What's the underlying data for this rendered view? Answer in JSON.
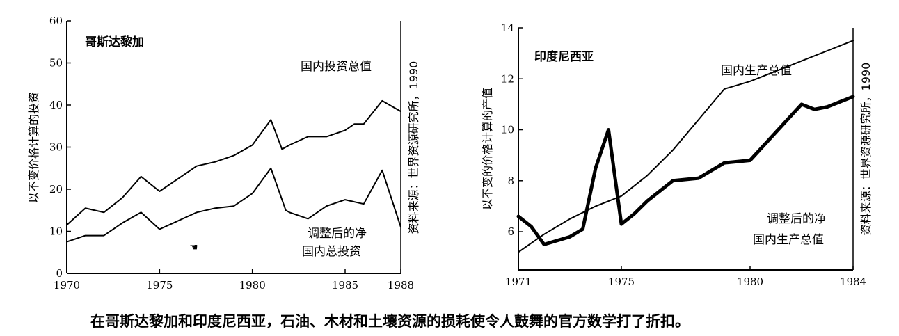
{
  "caption": "在哥斯达黎加和印度尼西亚，石油、木材和土壤资源的损耗使令人鼓舞的官方数学打了折扣。",
  "chart_data": [
    {
      "type": "line",
      "title": "哥斯达黎加",
      "ylabel": "以不变价格计算的投资",
      "source": "资料来源：世界资源研究所，1990",
      "xlim": [
        1970,
        1988
      ],
      "ylim": [
        0,
        60
      ],
      "x_ticks": [
        "1970",
        "1975",
        "1980",
        "1985",
        "1988"
      ],
      "y_ticks": [
        "0",
        "10",
        "20",
        "30",
        "40",
        "50",
        "60"
      ],
      "grid": false,
      "series": [
        {
          "name": "国内投资总值",
          "x": [
            1970,
            1971,
            1972,
            1973,
            1974,
            1975,
            1976,
            1977,
            1978,
            1979,
            1980,
            1981,
            1981.6,
            1982,
            1983,
            1984,
            1985,
            1985.5,
            1986,
            1987,
            1988
          ],
          "y": [
            11.5,
            15.5,
            14.5,
            18,
            23,
            19.5,
            22.5,
            25.5,
            26.5,
            28,
            30.5,
            36.5,
            29.5,
            30.5,
            32.5,
            32.5,
            34,
            35.5,
            35.5,
            41,
            38.5
          ],
          "color": "#000000"
        },
        {
          "name": "调整后的净国内总投资",
          "x": [
            1970,
            1971,
            1972,
            1973,
            1974,
            1975,
            1976,
            1977,
            1978,
            1979,
            1980,
            1981,
            1981.8,
            1982,
            1983,
            1984,
            1985,
            1986,
            1987,
            1988
          ],
          "y": [
            7.5,
            9,
            9,
            12,
            14.5,
            10.5,
            12.5,
            14.5,
            15.5,
            16,
            19,
            25,
            15,
            14.5,
            13,
            16,
            17.5,
            16.5,
            24.5,
            11
          ],
          "color": "#000000"
        }
      ],
      "labels": [
        {
          "text": "国内投资总值"
        },
        {
          "text": "调整后的净"
        },
        {
          "text": "国内总投资"
        }
      ]
    },
    {
      "type": "line",
      "title": "印度尼西亚",
      "ylabel": "以不变的价格计算的产值",
      "source": "资料来源：世界资源研究所，1990",
      "xlim": [
        1971,
        1984
      ],
      "ylim": [
        4.5,
        14
      ],
      "x_ticks": [
        "1971",
        "1975",
        "1980",
        "1984"
      ],
      "y_ticks": [
        "6",
        "8",
        "10",
        "12",
        "14"
      ],
      "grid": false,
      "series": [
        {
          "name": "国内生产总值",
          "x": [
            1971,
            1972,
            1973,
            1974,
            1975,
            1976,
            1977,
            1978,
            1979,
            1980,
            1981,
            1982,
            1983,
            1984
          ],
          "y": [
            5.2,
            5.9,
            6.5,
            7.0,
            7.4,
            8.2,
            9.2,
            10.4,
            11.6,
            11.9,
            12.3,
            12.7,
            13.1,
            13.5
          ],
          "color": "#000000"
        },
        {
          "name": "调整后的净国内生产总值",
          "x": [
            1971,
            1971.5,
            1972,
            1973,
            1973.5,
            1974,
            1974.5,
            1975,
            1975.5,
            1976,
            1977,
            1978,
            1979,
            1980,
            1981,
            1982,
            1982.5,
            1983,
            1984
          ],
          "y": [
            6.6,
            6.2,
            5.5,
            5.8,
            6.1,
            8.5,
            10.0,
            6.3,
            6.7,
            7.2,
            8.0,
            8.1,
            8.7,
            8.8,
            9.9,
            11.0,
            10.8,
            10.9,
            11.3
          ],
          "color": "#000000"
        }
      ],
      "labels": [
        {
          "text": "国内生产总值"
        },
        {
          "text": "调整后的净"
        },
        {
          "text": "国内生产总值"
        }
      ]
    }
  ]
}
